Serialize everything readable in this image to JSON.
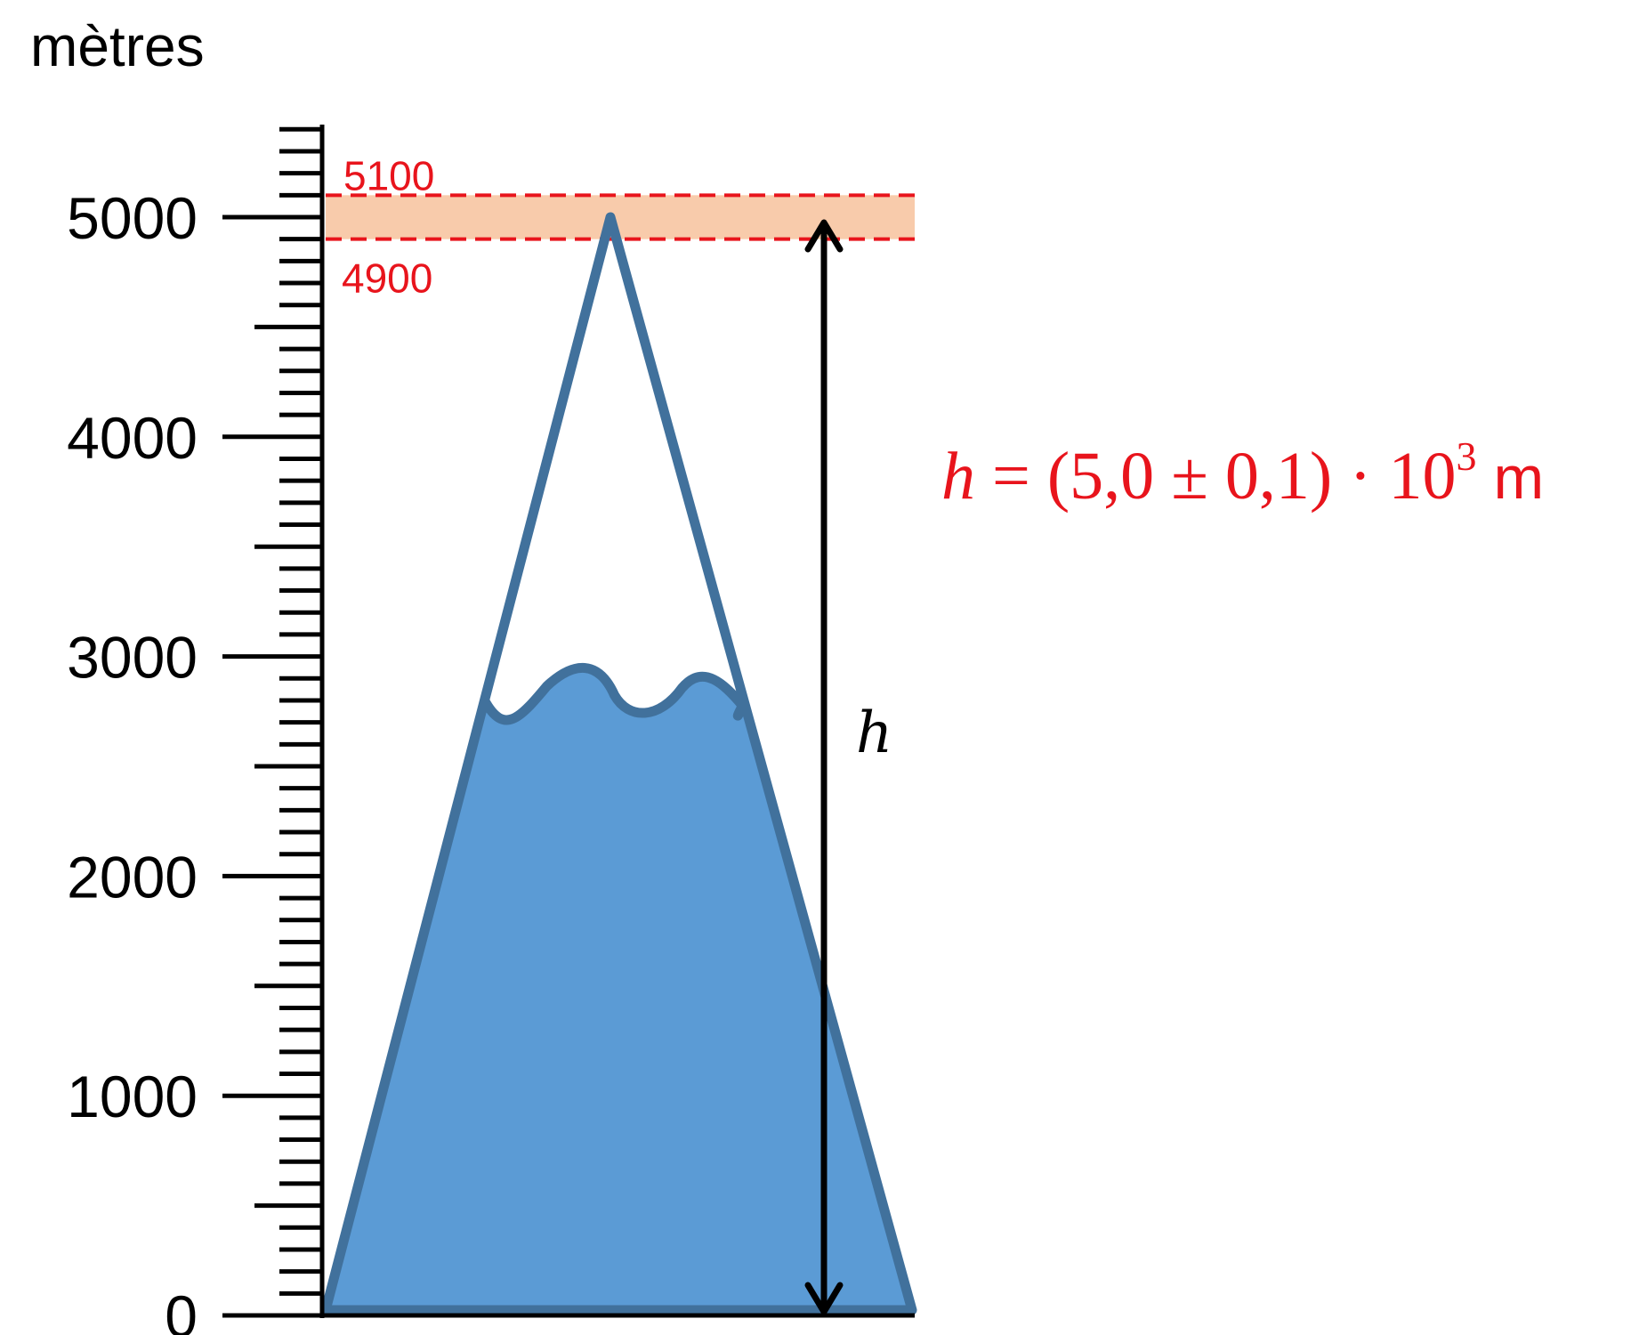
{
  "unit_label": "mètres",
  "axis": {
    "min": 0,
    "max": 5000,
    "major_step": 1000,
    "minor_step": 100,
    "major_tick_labels": [
      "0",
      "1000",
      "2000",
      "3000",
      "4000",
      "5000"
    ]
  },
  "uncertainty_band": {
    "upper_value": 5100,
    "lower_value": 4900,
    "upper_label": "5100",
    "lower_label": "4900",
    "fill_color": "#f8cbab",
    "line_color": "#e8141c"
  },
  "mountain": {
    "summit_value": 5000,
    "snowline_value": 2800,
    "fill_color": "#5b9bd5",
    "outline_color": "#41719c"
  },
  "height_arrow": {
    "label": "h",
    "from_value": 0,
    "to_value": 5000
  },
  "formula": {
    "variable": "h",
    "equals": "=",
    "open": "(5,0",
    "plus_minus": "± 0,1)",
    "dot": "·",
    "base": "10",
    "exponent": "3",
    "unit": "m",
    "color": "#e8141c"
  }
}
